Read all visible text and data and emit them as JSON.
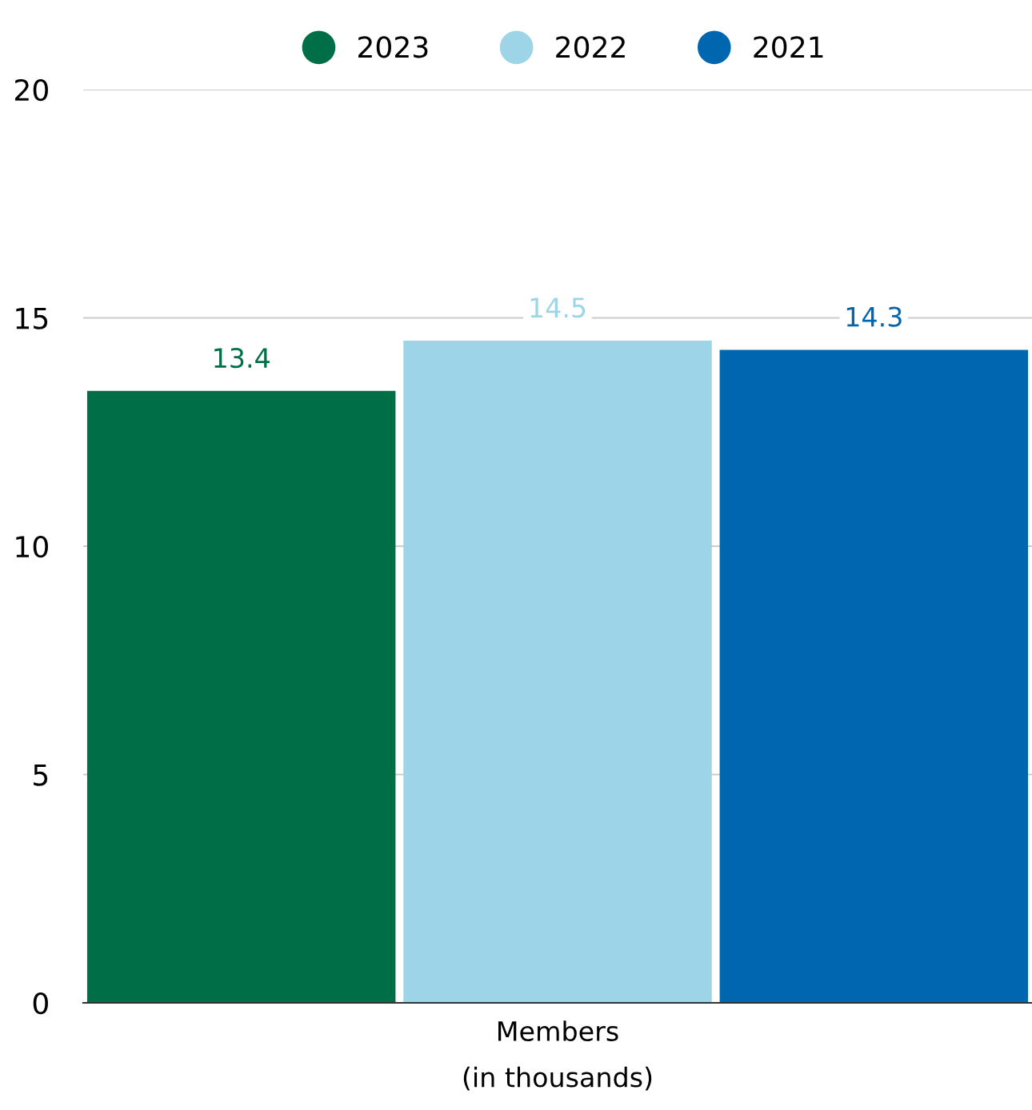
{
  "chart_data": {
    "type": "bar",
    "categories": [
      "Members\n(in thousands)"
    ],
    "series": [
      {
        "name": "2023",
        "color": "#006f47",
        "values": [
          13.4
        ]
      },
      {
        "name": "2022",
        "color": "#9dd4e8",
        "values": [
          14.5
        ]
      },
      {
        "name": "2021",
        "color": "#0066b0",
        "values": [
          14.3
        ]
      }
    ],
    "ylim": [
      0,
      20
    ],
    "yticks": [
      0,
      5,
      10,
      15,
      20
    ],
    "grid": "y",
    "legend": "top",
    "data_labels": true
  }
}
